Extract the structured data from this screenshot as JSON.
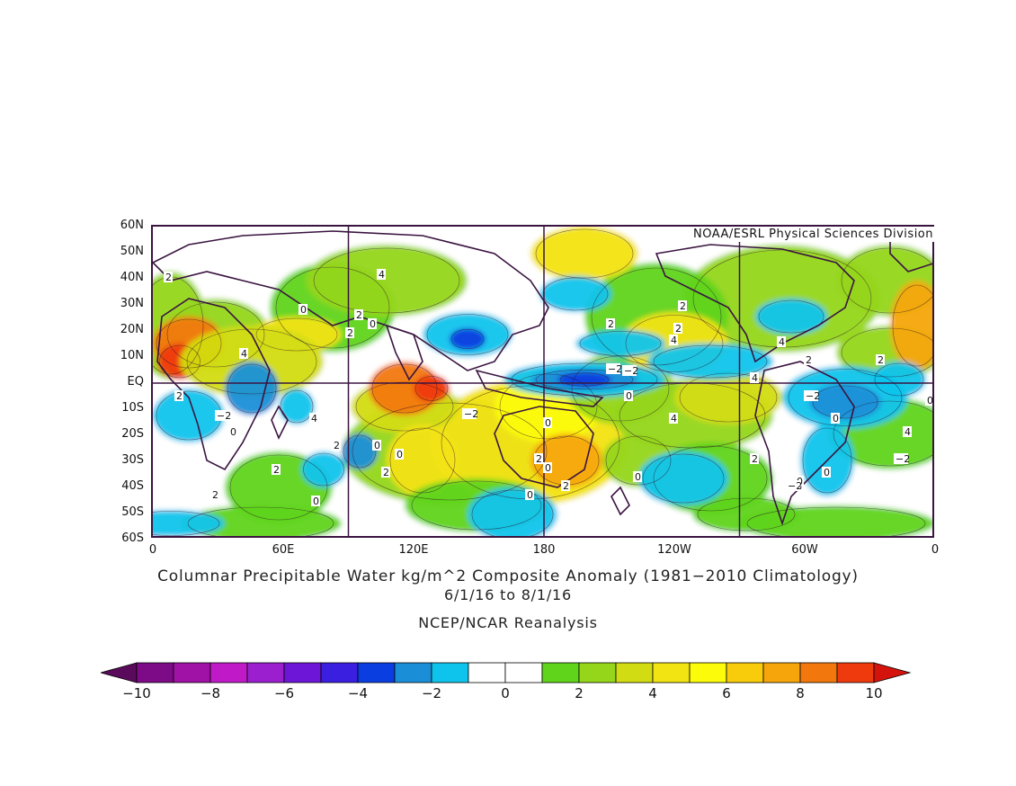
{
  "credit": "NOAA/ESRL Physical Sciences Division",
  "title": "Columnar Precipitable Water kg/m^2 Composite Anomaly (1981−2010 Climatology)",
  "dates": "6/1/16   to 8/1/16",
  "source": "NCEP/NCAR Reanalysis",
  "lat_ticks": [
    "60N",
    "50N",
    "40N",
    "30N",
    "20N",
    "10N",
    "EQ",
    "10S",
    "20S",
    "30S",
    "40S",
    "50S",
    "60S"
  ],
  "lon_ticks": [
    "0",
    "60E",
    "120E",
    "180",
    "120W",
    "60W",
    "0"
  ],
  "colorbar": {
    "colors": [
      "#5a0a5a",
      "#7d0a87",
      "#a012a5",
      "#c01ac8",
      "#9b1fcf",
      "#6e16d7",
      "#3a1fe0",
      "#0a3ee0",
      "#1a8fd8",
      "#0fc4ec",
      "#ffffff",
      "#ffffff",
      "#5fd41a",
      "#95d61a",
      "#d2dc12",
      "#f2e312",
      "#fbfb0a",
      "#f8cc0a",
      "#f6a60a",
      "#f2780e",
      "#ee3a0c",
      "#d4140c"
    ],
    "labels": [
      "−10",
      "−8",
      "−6",
      "−4",
      "−2",
      "0",
      "2",
      "4",
      "6",
      "8",
      "10"
    ]
  },
  "contour_labels": [
    "2",
    "4",
    "0",
    "2",
    "2",
    "0",
    "2",
    "4",
    "−2",
    "0",
    "2",
    "2",
    "−2",
    "4",
    "4",
    "2",
    "0",
    "0",
    "−2",
    "2",
    "2",
    "0",
    "2",
    "4",
    "0",
    "2",
    "−2",
    "0",
    "2",
    "0",
    "4",
    "2",
    "4",
    "0",
    "−2",
    "0",
    "0",
    "2",
    "2",
    "0",
    "4",
    "−2",
    "2",
    "0",
    "0",
    "−2",
    "2"
  ],
  "colors": {
    "frame": "#3a1440",
    "coastline": "#3a1440",
    "grid": "#3a1440"
  }
}
